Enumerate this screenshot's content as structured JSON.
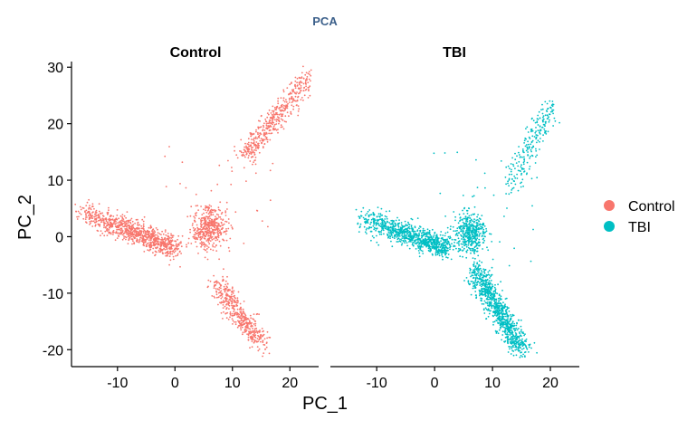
{
  "chart_data": {
    "type": "scatter",
    "title": "PCA",
    "xlabel": "PC_1",
    "ylabel": "PC_2",
    "xlim": [
      -18,
      25
    ],
    "ylim": [
      -23,
      31
    ],
    "xticks": [
      -10,
      0,
      10,
      20
    ],
    "yticks": [
      -20,
      -10,
      0,
      10,
      20,
      30
    ],
    "grid": false,
    "legend_position": "right",
    "panels": [
      {
        "label": "Control",
        "color": "#F8766D",
        "clusters": [
          {
            "name": "left-arm",
            "x_from": -17,
            "x_to": 0,
            "y_from": 4.5,
            "y_to": -2.0,
            "density": "very-high"
          },
          {
            "name": "upper-right-arm",
            "x_from": 12,
            "x_to": 23,
            "y_from": 14,
            "y_to": 28,
            "density": "high"
          },
          {
            "name": "center-blob",
            "x_center": 6,
            "y_center": 1.5,
            "spread": 2.5,
            "density": "high"
          },
          {
            "name": "lower-arm",
            "x_from": 7,
            "x_to": 15,
            "y_from": -8,
            "y_to": -19,
            "density": "high"
          }
        ]
      },
      {
        "label": "TBI",
        "color": "#00BFC4",
        "clusters": [
          {
            "name": "left-arm",
            "x_from": -13,
            "x_to": 2,
            "y_from": 3.5,
            "y_to": -2.0,
            "density": "very-high"
          },
          {
            "name": "upper-right-arm",
            "x_from": 13,
            "x_to": 20,
            "y_from": 9,
            "y_to": 23,
            "density": "medium"
          },
          {
            "name": "center-blob",
            "x_center": 6,
            "y_center": 0.5,
            "spread": 2.5,
            "density": "high"
          },
          {
            "name": "lower-arm",
            "x_from": 7,
            "x_to": 15,
            "y_from": -6,
            "y_to": -20,
            "density": "very-high"
          }
        ]
      }
    ],
    "legend": [
      {
        "label": "Control",
        "color": "#F8766D"
      },
      {
        "label": "TBI",
        "color": "#00BFC4"
      }
    ]
  }
}
